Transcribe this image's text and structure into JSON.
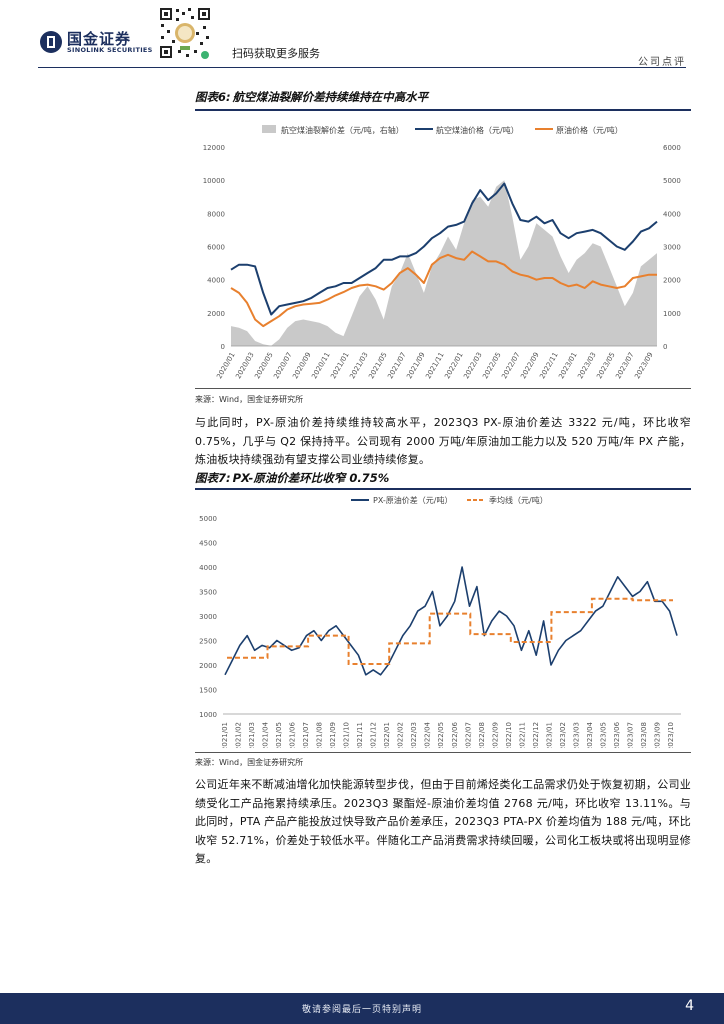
{
  "header": {
    "logo_cn": "国金证券",
    "logo_en": "SINOLINK SECURITIES",
    "scan_text": "扫码获取更多服务",
    "report_type": "公司点评"
  },
  "figure6": {
    "label": "图表6:",
    "title": "航空煤油裂解价差持续维持在中高水平",
    "source": "来源：Wind，国金证券研究所"
  },
  "para1": "与此同时，PX-原油价差持续维持较高水平，2023Q3 PX-原油价差达 3322 元/吨，环比收窄 0.75%，几乎与 Q2 保持持平。公司现有 2000 万吨/年原油加工能力以及 520 万吨/年 PX 产能，炼油板块持续强劲有望支撑公司业绩持续修复。",
  "figure7": {
    "label": "图表7:",
    "title": "PX-原油价差环比收窄 0.75%",
    "source": "来源：Wind，国金证券研究所"
  },
  "para2": "公司近年来不断减油增化加快能源转型步伐，但由于目前烯烃类化工品需求仍处于恢复初期，公司业绩受化工产品拖累持续承压。2023Q3 聚酯烃-原油价差均值 2768 元/吨，环比收窄 13.11%。与此同时，PTA 产品产能投放过快导致产品价差承压，2023Q3 PTA-PX 价差均值为 188 元/吨，环比收窄 52.71%，价差处于较低水平。伴随化工产品消费需求持续回暖，公司化工板块或将出现明显修复。",
  "footer": {
    "text": "敬请参阅最后一页特别声明",
    "page": "4"
  },
  "colors": {
    "navy": "#1c3f6e",
    "orange": "#e8802e",
    "gray_area": "#c9c9c9",
    "brand": "#1c2f5e"
  },
  "chart_data": [
    {
      "type": "line",
      "title": "航空煤油裂解价差持续维持在中高水平",
      "legend_position": "top",
      "y_left": {
        "ticks": [
          "0",
          "2000",
          "4000",
          "6000",
          "8000",
          "10000",
          "12000"
        ],
        "ylim": [
          0,
          12000
        ]
      },
      "y_right": {
        "ticks": [
          "0",
          "1000",
          "2000",
          "3000",
          "4000",
          "5000",
          "6000"
        ],
        "ylim": [
          0,
          6000
        ]
      },
      "x_labels": [
        "2020/01",
        "2020/03",
        "2020/05",
        "2020/07",
        "2020/09",
        "2020/11",
        "2021/01",
        "2021/03",
        "2021/05",
        "2021/07",
        "2021/09",
        "2021/11",
        "2022/01",
        "2022/03",
        "2022/05",
        "2022/07",
        "2022/09",
        "2022/11",
        "2023/01",
        "2023/03",
        "2023/05",
        "2023/07",
        "2023/09"
      ],
      "series": [
        {
          "name": "航空煤油裂解价差（元/吨，右轴）",
          "type": "area",
          "axis": "right",
          "values": [
            600,
            550,
            450,
            150,
            50,
            10,
            200,
            550,
            750,
            800,
            750,
            700,
            600,
            400,
            300,
            900,
            1500,
            1800,
            1400,
            800,
            1800,
            2200,
            2800,
            2200,
            1600,
            2400,
            2800,
            3300,
            2900,
            3700,
            4400,
            4500,
            4200,
            4800,
            5000,
            3900,
            2600,
            3000,
            3700,
            3500,
            3300,
            2700,
            2200,
            2600,
            2800,
            3100,
            3000,
            2400,
            1800,
            1200,
            1600,
            2400,
            2600,
            2800
          ]
        },
        {
          "name": "航空煤油价格（元/吨）",
          "type": "line",
          "axis": "left",
          "values": [
            4600,
            4900,
            4900,
            4800,
            3200,
            1900,
            2400,
            2500,
            2600,
            2700,
            2900,
            3200,
            3500,
            3600,
            3800,
            3800,
            4100,
            4400,
            4700,
            5200,
            5200,
            5400,
            5400,
            5600,
            6000,
            6500,
            6800,
            7200,
            7300,
            7500,
            8600,
            9400,
            8800,
            9200,
            9800,
            8600,
            7600,
            7500,
            7800,
            7400,
            7600,
            6800,
            6500,
            6800,
            6900,
            7000,
            6800,
            6400,
            6000,
            5800,
            6300,
            6900,
            7100,
            7500
          ]
        },
        {
          "name": "原油价格（元/吨）",
          "type": "line",
          "axis": "left",
          "values": [
            3500,
            3200,
            2600,
            1600,
            1200,
            1500,
            1800,
            2200,
            2400,
            2500,
            2550,
            2600,
            2800,
            3050,
            3250,
            3500,
            3650,
            3700,
            3600,
            3400,
            3800,
            4400,
            4700,
            4300,
            3800,
            4900,
            5300,
            5500,
            5300,
            5200,
            5700,
            5400,
            5100,
            5100,
            4900,
            4500,
            4300,
            4200,
            4000,
            4100,
            4100,
            3800,
            3600,
            3700,
            3500,
            3900,
            3700,
            3600,
            3500,
            3600,
            4100,
            4200,
            4300,
            4300
          ]
        }
      ]
    },
    {
      "type": "line",
      "title": "PX-原油价差环比收窄 0.75%",
      "legend_position": "top",
      "y": {
        "ticks": [
          "1000",
          "1500",
          "2000",
          "2500",
          "3000",
          "3500",
          "4000",
          "4500",
          "5000"
        ],
        "ylim": [
          1000,
          5000
        ]
      },
      "x_labels": [
        "2021/01",
        "2021/02",
        "2021/03",
        "2021/04",
        "2021/05",
        "2021/06",
        "2021/07",
        "2021/08",
        "2021/09",
        "2021/10",
        "2021/11",
        "2021/12",
        "2022/01",
        "2022/02",
        "2022/03",
        "2022/04",
        "2022/05",
        "2022/06",
        "2022/07",
        "2022/08",
        "2022/09",
        "2022/10",
        "2022/11",
        "2022/12",
        "2023/01",
        "2023/02",
        "2023/03",
        "2023/04",
        "2023/05",
        "2023/06",
        "2023/07",
        "2023/08",
        "2023/09",
        "2023/10"
      ],
      "series": [
        {
          "name": "PX-原油价差（元/吨）",
          "style": "solid",
          "values": [
            1800,
            2100,
            2400,
            2600,
            2300,
            2400,
            2350,
            2500,
            2400,
            2300,
            2350,
            2600,
            2700,
            2500,
            2700,
            2800,
            2600,
            2400,
            2200,
            1800,
            1900,
            1800,
            2000,
            2300,
            2600,
            2800,
            3100,
            3200,
            3500,
            2800,
            3000,
            3300,
            4000,
            3200,
            3600,
            2600,
            2900,
            3100,
            3000,
            2800,
            2300,
            2700,
            2200,
            2900,
            2000,
            2300,
            2500,
            2600,
            2700,
            2900,
            3100,
            3200,
            3500,
            3800,
            3600,
            3400,
            3500,
            3700,
            3300,
            3300,
            3100,
            2600
          ]
        },
        {
          "name": "季均线（元/吨）",
          "style": "dashed",
          "quarters": [
            {
              "from": "2021/01",
              "to": "2021/04",
              "value": 2150
            },
            {
              "from": "2021/04",
              "to": "2021/07",
              "value": 2380
            },
            {
              "from": "2021/07",
              "to": "2021/10",
              "value": 2600
            },
            {
              "from": "2021/10",
              "to": "2022/01",
              "value": 2020
            },
            {
              "from": "2022/01",
              "to": "2022/04",
              "value": 2440
            },
            {
              "from": "2022/04",
              "to": "2022/07",
              "value": 3050
            },
            {
              "from": "2022/07",
              "to": "2022/10",
              "value": 2630
            },
            {
              "from": "2022/10",
              "to": "2023/01",
              "value": 2470
            },
            {
              "from": "2023/01",
              "to": "2023/04",
              "value": 3080
            },
            {
              "from": "2023/04",
              "to": "2023/07",
              "value": 3350
            },
            {
              "from": "2023/07",
              "to": "2023/10",
              "value": 3322
            }
          ]
        }
      ]
    }
  ]
}
